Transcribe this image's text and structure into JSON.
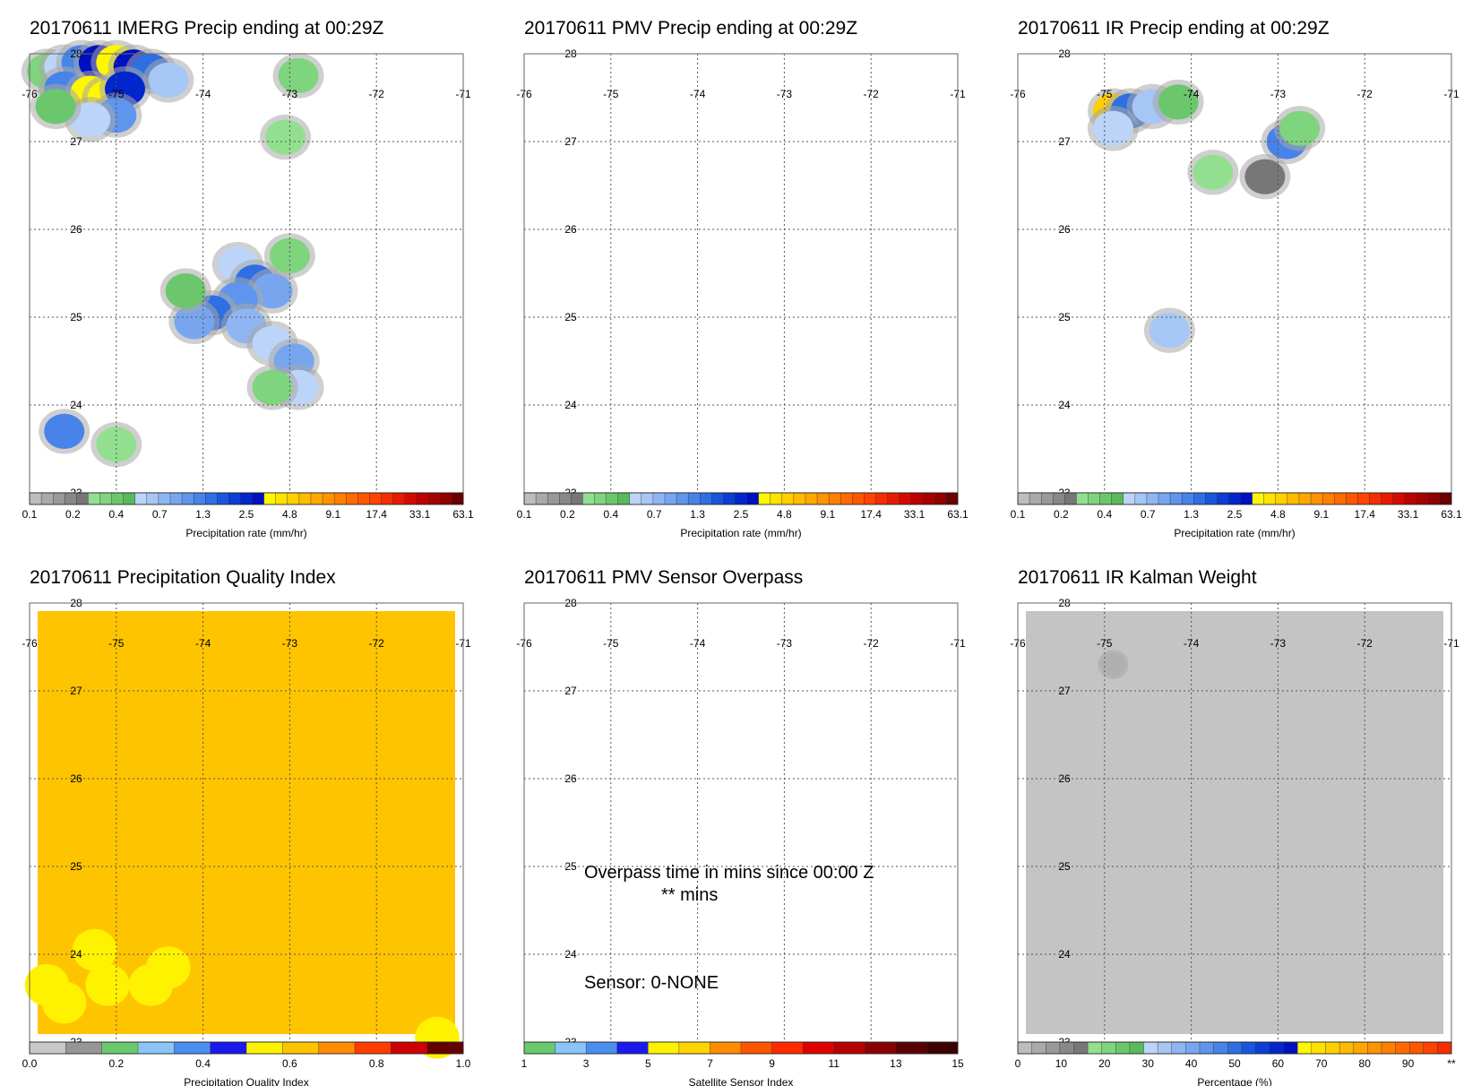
{
  "panels": [
    {
      "title": "20170611 IMERG Precip ending at 00:29Z",
      "chart_data": {
        "type": "heatmap",
        "x_ticks": [
          "-76",
          "-75",
          "-74",
          "-73",
          "-72",
          "-71"
        ],
        "y_ticks": [
          "28",
          "27",
          "26",
          "25",
          "24",
          "23"
        ],
        "xlim": [
          -76,
          -71
        ],
        "ylim": [
          23,
          28
        ],
        "grid": true,
        "colorbar": {
          "ticks": [
            "0.1",
            "0.2",
            "0.4",
            "0.7",
            "1.3",
            "2.5",
            "4.8",
            "9.1",
            "17.4",
            "33.1",
            "63.1"
          ],
          "label": "Precipitation rate (mm/hr)"
        },
        "cells": [
          {
            "lon": -75.8,
            "lat": 27.8,
            "v": 0.3
          },
          {
            "lon": -75.6,
            "lat": 27.85,
            "v": 0.5
          },
          {
            "lon": -75.4,
            "lat": 27.9,
            "v": 1.3
          },
          {
            "lon": -75.2,
            "lat": 27.9,
            "v": 3.0
          },
          {
            "lon": -75.0,
            "lat": 27.9,
            "v": 3.5
          },
          {
            "lon": -74.8,
            "lat": 27.85,
            "v": 3.2
          },
          {
            "lon": -74.6,
            "lat": 27.8,
            "v": 1.5
          },
          {
            "lon": -74.4,
            "lat": 27.7,
            "v": 0.6
          },
          {
            "lon": -75.6,
            "lat": 27.6,
            "v": 1.2
          },
          {
            "lon": -75.3,
            "lat": 27.55,
            "v": 3.3
          },
          {
            "lon": -75.1,
            "lat": 27.5,
            "v": 3.4
          },
          {
            "lon": -74.9,
            "lat": 27.6,
            "v": 2.4
          },
          {
            "lon": -75.0,
            "lat": 27.3,
            "v": 1.0
          },
          {
            "lon": -75.3,
            "lat": 27.25,
            "v": 0.5
          },
          {
            "lon": -75.7,
            "lat": 27.4,
            "v": 0.4
          },
          {
            "lon": -72.9,
            "lat": 27.75,
            "v": 0.3
          },
          {
            "lon": -73.05,
            "lat": 27.05,
            "v": 0.25
          },
          {
            "lon": -73.6,
            "lat": 25.6,
            "v": 0.5
          },
          {
            "lon": -73.4,
            "lat": 25.4,
            "v": 1.4
          },
          {
            "lon": -73.2,
            "lat": 25.3,
            "v": 0.9
          },
          {
            "lon": -73.6,
            "lat": 25.2,
            "v": 1.0
          },
          {
            "lon": -73.9,
            "lat": 25.05,
            "v": 1.5
          },
          {
            "lon": -74.1,
            "lat": 24.95,
            "v": 0.8
          },
          {
            "lon": -73.5,
            "lat": 24.9,
            "v": 0.7
          },
          {
            "lon": -73.2,
            "lat": 24.7,
            "v": 0.5
          },
          {
            "lon": -72.95,
            "lat": 24.5,
            "v": 0.8
          },
          {
            "lon": -72.9,
            "lat": 24.2,
            "v": 0.5
          },
          {
            "lon": -73.0,
            "lat": 25.7,
            "v": 0.3
          },
          {
            "lon": -74.2,
            "lat": 25.3,
            "v": 0.4
          },
          {
            "lon": -75.6,
            "lat": 23.7,
            "v": 1.3
          },
          {
            "lon": -75.0,
            "lat": 23.55,
            "v": 0.25
          },
          {
            "lon": -73.2,
            "lat": 24.2,
            "v": 0.3
          }
        ]
      },
      "notes": []
    },
    {
      "title": "20170611 PMV Precip ending at 00:29Z",
      "chart_data": {
        "type": "heatmap",
        "x_ticks": [
          "-76",
          "-75",
          "-74",
          "-73",
          "-72",
          "-71"
        ],
        "y_ticks": [
          "28",
          "27",
          "26",
          "25",
          "24",
          "23"
        ],
        "xlim": [
          -76,
          -71
        ],
        "ylim": [
          23,
          28
        ],
        "grid": true,
        "colorbar": {
          "ticks": [
            "0.1",
            "0.2",
            "0.4",
            "0.7",
            "1.3",
            "2.5",
            "4.8",
            "9.1",
            "17.4",
            "33.1",
            "63.1"
          ],
          "label": "Precipitation rate (mm/hr)"
        },
        "cells": []
      },
      "notes": []
    },
    {
      "title": "20170611 IR Precip ending at 00:29Z",
      "chart_data": {
        "type": "heatmap",
        "x_ticks": [
          "-76",
          "-75",
          "-74",
          "-73",
          "-72",
          "-71"
        ],
        "y_ticks": [
          "28",
          "27",
          "26",
          "25",
          "24",
          "23"
        ],
        "xlim": [
          -76,
          -71
        ],
        "ylim": [
          23,
          28
        ],
        "grid": true,
        "colorbar": {
          "ticks": [
            "0.1",
            "0.2",
            "0.4",
            "0.7",
            "1.3",
            "2.5",
            "4.8",
            "9.1",
            "17.4",
            "33.1",
            "63.1"
          ],
          "label": "Precipitation rate (mm/hr)"
        },
        "cells": [
          {
            "lon": -74.9,
            "lat": 27.35,
            "v": 5.0
          },
          {
            "lon": -74.7,
            "lat": 27.35,
            "v": 1.5
          },
          {
            "lon": -74.45,
            "lat": 27.4,
            "v": 0.6
          },
          {
            "lon": -74.15,
            "lat": 27.45,
            "v": 0.4
          },
          {
            "lon": -74.9,
            "lat": 27.15,
            "v": 0.5
          },
          {
            "lon": -72.9,
            "lat": 27.0,
            "v": 1.3
          },
          {
            "lon": -72.75,
            "lat": 27.15,
            "v": 0.3
          },
          {
            "lon": -73.75,
            "lat": 26.65,
            "v": 0.25
          },
          {
            "lon": -73.15,
            "lat": 26.6,
            "v": 0.2
          },
          {
            "lon": -74.25,
            "lat": 24.85,
            "v": 0.6
          }
        ]
      },
      "notes": []
    },
    {
      "title": "20170611 Precipitation Quality Index",
      "chart_data": {
        "type": "heatmap",
        "x_ticks": [
          "-76",
          "-75",
          "-74",
          "-73",
          "-72",
          "-71"
        ],
        "y_ticks": [
          "28",
          "27",
          "26",
          "25",
          "24",
          "23"
        ],
        "xlim": [
          -76,
          -71
        ],
        "ylim": [
          23,
          28
        ],
        "grid": true,
        "colorbar": {
          "ticks": [
            "0.0",
            "0.2",
            "0.4",
            "0.6",
            "0.8",
            "1.0"
          ],
          "label": "Precipitation Quality Index"
        },
        "field_value": 0.75,
        "cells": [
          {
            "lon": -75.25,
            "lat": 24.05,
            "v": 0.65
          },
          {
            "lon": -75.8,
            "lat": 23.65,
            "v": 0.65
          },
          {
            "lon": -75.6,
            "lat": 23.45,
            "v": 0.65
          },
          {
            "lon": -75.1,
            "lat": 23.65,
            "v": 0.65
          },
          {
            "lon": -74.6,
            "lat": 23.65,
            "v": 0.65
          },
          {
            "lon": -74.4,
            "lat": 23.85,
            "v": 0.65
          },
          {
            "lon": -71.3,
            "lat": 23.05,
            "v": 0.65
          }
        ]
      },
      "notes": []
    },
    {
      "title": "20170611 PMV Sensor Overpass",
      "chart_data": {
        "type": "heatmap",
        "x_ticks": [
          "-76",
          "-75",
          "-74",
          "-73",
          "-72",
          "-71"
        ],
        "y_ticks": [
          "28",
          "27",
          "26",
          "25",
          "24",
          "23"
        ],
        "xlim": [
          -76,
          -71
        ],
        "ylim": [
          23,
          28
        ],
        "grid": true,
        "colorbar": {
          "ticks": [
            "1",
            "3",
            "5",
            "7",
            "9",
            "11",
            "13",
            "15"
          ],
          "label": "Satellite Sensor Index"
        },
        "cells": []
      },
      "notes": [
        "Overpass time in mins since 00:00 Z",
        "** mins",
        "Sensor:   0-NONE"
      ]
    },
    {
      "title": "20170611 IR Kalman Weight",
      "chart_data": {
        "type": "heatmap",
        "x_ticks": [
          "-76",
          "-75",
          "-74",
          "-73",
          "-72",
          "-71"
        ],
        "y_ticks": [
          "28",
          "27",
          "26",
          "25",
          "24",
          "23"
        ],
        "xlim": [
          -76,
          -71
        ],
        "ylim": [
          23,
          28
        ],
        "grid": true,
        "colorbar": {
          "ticks": [
            "0",
            "10",
            "20",
            "30",
            "40",
            "50",
            "60",
            "70",
            "80",
            "90",
            "**"
          ],
          "label": "Percentage (%)"
        },
        "field_value": 5,
        "cells": [
          {
            "lon": -74.9,
            "lat": 27.3,
            "v": 8
          }
        ]
      },
      "notes": []
    }
  ],
  "palettes": {
    "precip": [
      "#bdbdbd",
      "#aaaaaa",
      "#999999",
      "#888888",
      "#777777",
      "#92e08f",
      "#7fd47e",
      "#6cc76c",
      "#59ba5b",
      "#bcd4f7",
      "#a6c6f5",
      "#8fb6f2",
      "#77a6ef",
      "#5f95ec",
      "#4783e8",
      "#2e6fe3",
      "#1a56dc",
      "#0c3dd4",
      "#0026cc",
      "#0010c0",
      "#fff700",
      "#ffe300",
      "#ffcf00",
      "#ffbb00",
      "#ffa700",
      "#ff9300",
      "#ff7f00",
      "#ff6b00",
      "#ff5700",
      "#ff4300",
      "#f42e00",
      "#e61a00",
      "#d40a00",
      "#bd0000",
      "#a60000",
      "#8f0000",
      "#6e0000"
    ],
    "qi": [
      "#c8c8c8",
      "#969696",
      "#69c96f",
      "#8cc4f7",
      "#4b8ef0",
      "#1a1aee",
      "#fff200",
      "#ffc400",
      "#ff8c00",
      "#ff3c00",
      "#cc0000",
      "#660000"
    ],
    "sensor": [
      "#69c96f",
      "#8cc4f7",
      "#4b8ef0",
      "#1a1aee",
      "#fff200",
      "#ffd400",
      "#ff8c00",
      "#ff5400",
      "#ff2a00",
      "#e00000",
      "#b80000",
      "#8a0000",
      "#5a0000",
      "#3c0000"
    ],
    "kalman": [
      "#bdbdbd",
      "#aaaaaa",
      "#999999",
      "#888888",
      "#777777",
      "#92e08f",
      "#7fd47e",
      "#6cc76c",
      "#59ba5b",
      "#bcd4f7",
      "#a6c6f5",
      "#8fb6f2",
      "#77a6ef",
      "#5f95ec",
      "#4783e8",
      "#2e6fe3",
      "#1a56dc",
      "#0c3dd4",
      "#0026cc",
      "#0010c0",
      "#fff700",
      "#ffe300",
      "#ffcf00",
      "#ffbb00",
      "#ffa700",
      "#ff9300",
      "#ff7f00",
      "#ff6b00",
      "#ff5700",
      "#ff4300",
      "#f42e00"
    ]
  }
}
